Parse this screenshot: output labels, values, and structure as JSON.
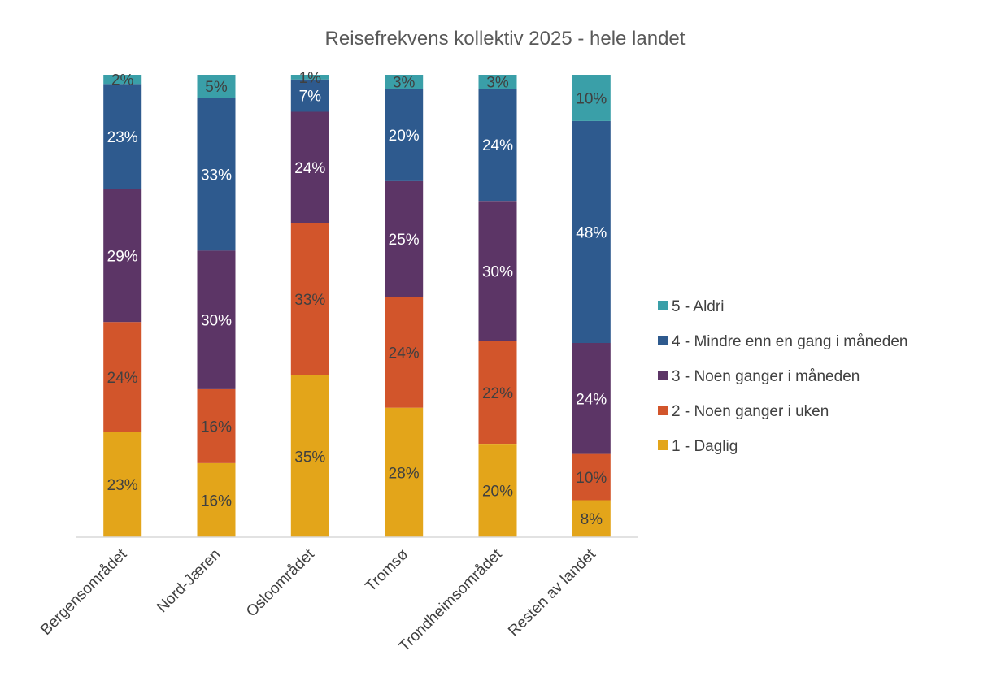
{
  "chart_data": {
    "type": "bar",
    "stacked": true,
    "percent": true,
    "title": "Reisefrekvens kollektiv 2025 - hele landet",
    "categories": [
      "Bergensområdet",
      "Nord-Jæren",
      "Osloområdet",
      "Tromsø",
      "Trondheimsområdet",
      "Resten av landet"
    ],
    "series": [
      {
        "name": "1 - Daglig",
        "color": "#E3A51A",
        "label_color": "#404040",
        "values": [
          23,
          16,
          35,
          28,
          20,
          8
        ]
      },
      {
        "name": "2 - Noen ganger i uken",
        "color": "#D2552B",
        "label_color": "#404040",
        "values": [
          24,
          16,
          33,
          24,
          22,
          10
        ]
      },
      {
        "name": "3 - Noen ganger i måneden",
        "color": "#5C3566",
        "label_color": "#ffffff",
        "values": [
          29,
          30,
          24,
          25,
          30,
          24
        ]
      },
      {
        "name": "4 - Mindre enn en gang i måneden",
        "color": "#2E5A8E",
        "label_color": "#ffffff",
        "values": [
          23,
          33,
          7,
          20,
          24,
          48
        ]
      },
      {
        "name": "5 - Aldri",
        "color": "#3A9FA8",
        "label_color": "#404040",
        "values": [
          2,
          5,
          1,
          3,
          3,
          10
        ]
      }
    ],
    "legend_position": "right",
    "grid": false,
    "value_suffix": "%"
  }
}
